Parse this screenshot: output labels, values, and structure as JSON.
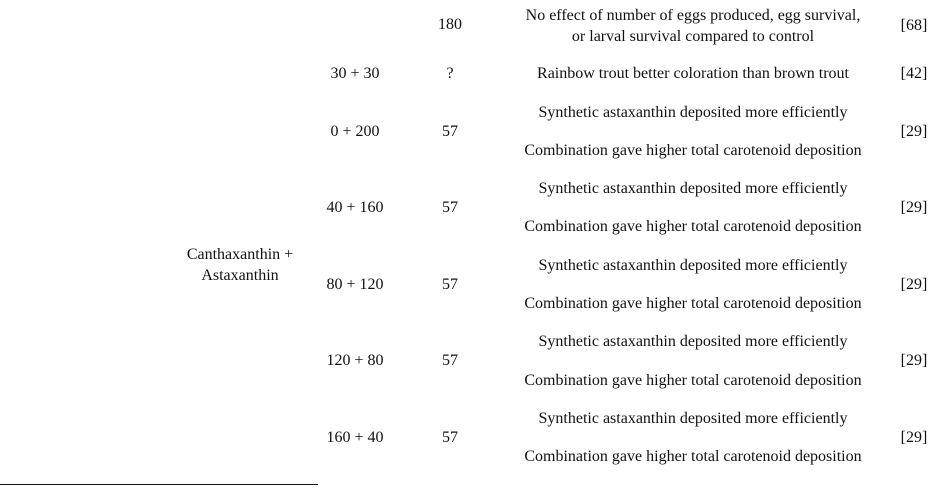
{
  "top_row": {
    "days": "180",
    "effect_line1": "No effect of number of eggs produced, egg survival,",
    "effect_line2": "or larval survival compared to control",
    "ref": "[68]"
  },
  "second_row": {
    "dose": "30 + 30",
    "days": "?",
    "effect": "Rainbow trout better coloration than brown trout",
    "ref": "[42]"
  },
  "group_label_line1": "Canthaxanthin +",
  "group_label_line2": "Astaxanthin",
  "rows": [
    {
      "dose": "0 + 200",
      "days": "57",
      "effect_a": "Synthetic astaxanthin deposited more efficiently",
      "effect_b": "Combination gave higher total carotenoid deposition",
      "ref": "[29]"
    },
    {
      "dose": "40 + 160",
      "days": "57",
      "effect_a": "Synthetic astaxanthin deposited more efficiently",
      "effect_b": "Combination gave higher total carotenoid deposition",
      "ref": "[29]"
    },
    {
      "dose": "80 + 120",
      "days": "57",
      "effect_a": "Synthetic astaxanthin deposited more efficiently",
      "effect_b": "Combination gave higher total carotenoid deposition",
      "ref": "[29]"
    },
    {
      "dose": "120 + 80",
      "days": "57",
      "effect_a": "Synthetic astaxanthin deposited more efficiently",
      "effect_b": "Combination gave higher total carotenoid deposition",
      "ref": "[29]"
    },
    {
      "dose": "160 + 40",
      "days": "57",
      "effect_a": "Synthetic astaxanthin deposited more efficiently",
      "effect_b": "Combination gave higher total carotenoid deposition",
      "ref": "[29]"
    }
  ]
}
